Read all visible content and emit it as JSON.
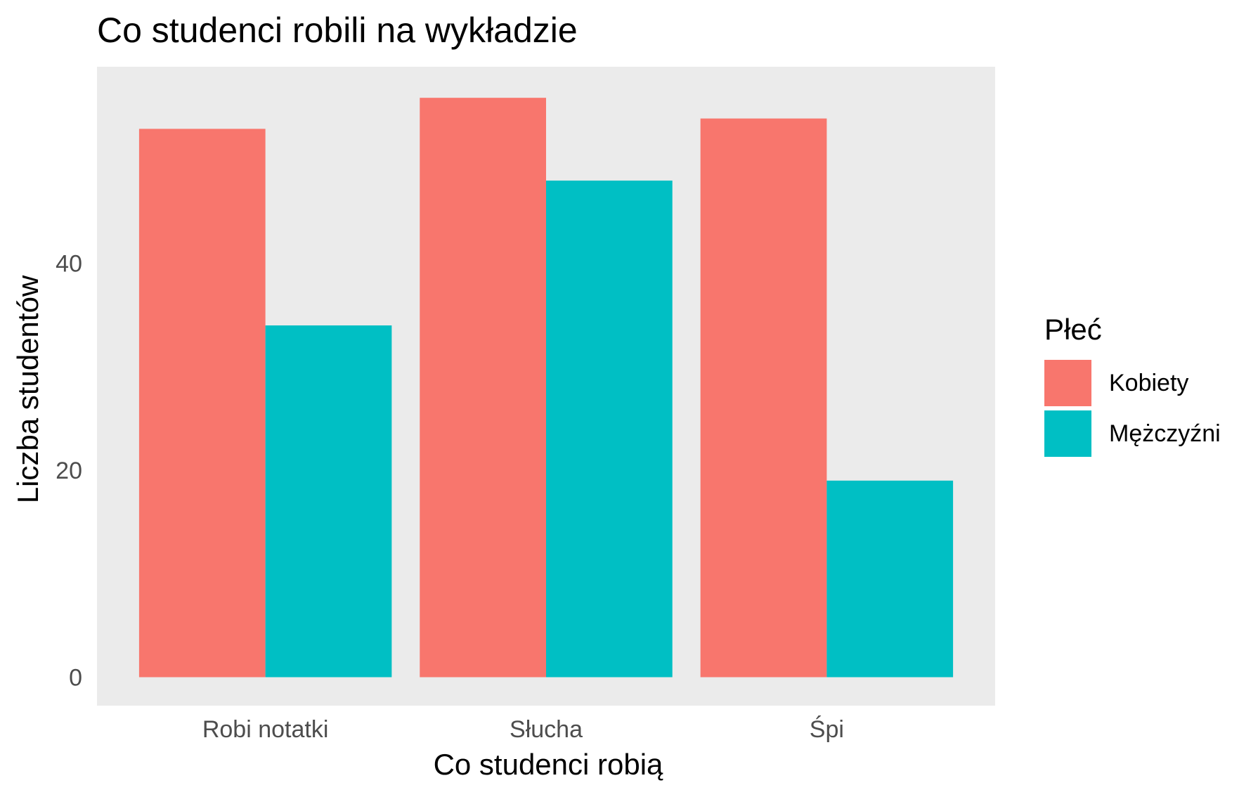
{
  "chart_data": {
    "type": "bar",
    "title": "Co studenci robili na wykładzie",
    "xlabel": "Co studenci robią",
    "ylabel": "Liczba studentów",
    "categories": [
      "Robi notatki",
      "Słucha",
      "Śpi"
    ],
    "series": [
      {
        "name": "Kobiety",
        "values": [
          53,
          56,
          54
        ],
        "color": "#F8766D"
      },
      {
        "name": "Mężczyźni",
        "values": [
          34,
          48,
          19
        ],
        "color": "#00BFC4"
      }
    ],
    "ylim": [
      -2.75,
      59
    ],
    "yticks": [
      0,
      20,
      40
    ],
    "grid": false,
    "background": "#EBEBEB",
    "legend": {
      "title": "Płeć",
      "position": "right"
    }
  }
}
